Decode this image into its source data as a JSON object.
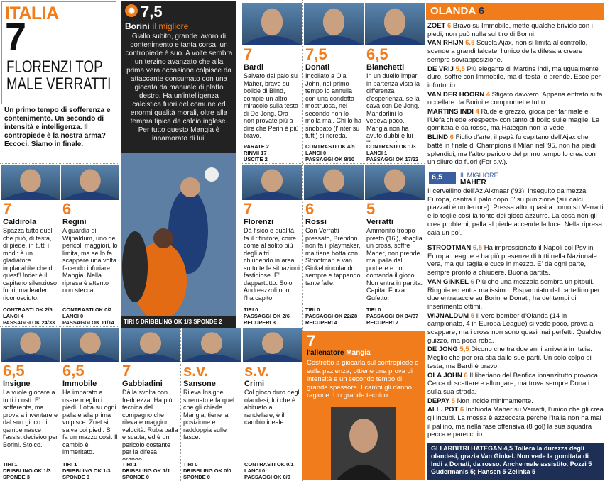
{
  "header": {
    "team": "ITALIA",
    "vote": "7",
    "headline_1": "FLORENZI TOP",
    "headline_2": "MALE VERRATTI",
    "intro": "Un primo tempo di sofferenza e contenimento. Un secondo di intensità e intelligenza. Il contropiede è la nostra arma? Eccoci. Siamo in finale."
  },
  "best": {
    "vote": "7,5",
    "name": "Borini",
    "tag": "il migliore",
    "text": "Giallo subito, grande lavoro di contenimento e tanta corsa, un contropiede è suo. A volte sembra un terzino avanzato che alla prima vera occasione colpisce da attaccante consumato con una giocata da manuale di platto destro. Ha un'intelligenza calcistica fuori del comune ed enormi qualità morali, oltre alla tempra tipica da calcio inglese. Per tutto questo Mangia è innamorato di lui.",
    "stats": "TIRI 5   DRIBBLING OK 1/3   SPONDE 2"
  },
  "players": [
    {
      "vote": "7",
      "name": "Bardi",
      "text": "Salvato dal palo su Maher, bravo sul bolide di Blind, compie un altro miracolo sulla testa di De Jong. Ora non provate più a dire che Perin è più bravo.",
      "stats": [
        "PARATE 2",
        "RINVII 17",
        "USCITE 2"
      ]
    },
    {
      "vote": "7,5",
      "name": "Donati",
      "text": "Incollato a Ola John, nel primo tempo lo annulla con una condotta mostruosa, nel secondo non lo molla mai. Chi lo ha snobbato (l'Inter su tutti) si ricreda.",
      "stats": [
        "CONTRASTI OK 4/5",
        "LANCI 0",
        "PASSAGGI OK 8/10"
      ]
    },
    {
      "vote": "6,5",
      "name": "Bianchetti",
      "text": "In un duello impari in partenza vista la differenza d'esperienza, se la cava con De Jong. Mandorlini lo vedeva poco. Mangia non ha avuto dubbi e lui l'ha ripagato.",
      "stats": [
        "CONTRASTI OK 1/3",
        "LANCI 1",
        "PASSAGGI OK 17/22"
      ]
    },
    {
      "vote": "7",
      "name": "Caldirola",
      "text": "Spazza tutto quel che può, di testa, di piede, in tutti i modi: è un gladiatore implacabile che di quest'Under è il capitano silenzioso fuori, ma leader riconosciuto.",
      "stats": [
        "CONTRASTI OK 2/5",
        "LANCI 4",
        "PASSAGGI OK 24/33"
      ]
    },
    {
      "vote": "6",
      "name": "Regini",
      "text": "A guardia di Wijnaldum, uno dei pericoli maggiori, lo limita, ma se lo fa scappare una volta facendo infuriare Mangia. Nella ripresa è attento non stecca.",
      "stats": [
        "CONTRASTI OK 0/2",
        "LANCI 0",
        "PASSAGGI OK 11/14"
      ]
    },
    {
      "vote": "7",
      "name": "Florenzi",
      "text": "Dà fisico e qualità, fa il rifinitore, corre come al solito più degli altri chiudendo in area su tutte le situazioni fastidiose. E' dappertutto. Solo Andreazzoli non l'ha capito.",
      "stats": [
        "TIRI 0",
        "PASSAGGI OK 2/6",
        "RECUPERI 3"
      ]
    },
    {
      "vote": "6",
      "name": "Rossi",
      "text": "Con Verratti pressato, Brendon non fa il playmaker, ma tiene botta con Strootman e van Ginkel rinculando sempre e tappando tante falle.",
      "stats": [
        "TIRI 0",
        "PASSAGGI OK 22/28",
        "RECUPERI 4"
      ]
    },
    {
      "vote": "5",
      "name": "Verratti",
      "text": "Ammonito troppo presto (16'), sbaglia un cross, soffre Maher, non prende mai palla dal portiere e non comanda il gioco. Non entra in partita. Capita. Forza Gufetto.",
      "stats": [
        "TIRI 0",
        "PASSAGGI OK 34/37",
        "RECUPERI 7"
      ]
    },
    {
      "vote": "6,5",
      "name": "Insigne",
      "text": "La vuole giocare a tutti i costi. E' sofferente, ma prova a inventare e dal suo gioco di gambe nasce l'assist decisivo per Borini. Stoico.",
      "stats": [
        "TIRI 1",
        "DRIBBLING OK 1/3",
        "SPONDE 3"
      ]
    },
    {
      "vote": "6,5",
      "name": "Immobile",
      "text": "Ha imparato a usare meglio i piedi. Lotta su ogni palla e alla prima volpisce: Zoet si salva coi piedi. Si fa un mazzo così. Il cambio è immeritato.",
      "stats": [
        "TIRI 1",
        "DRIBBLING OK 1/3",
        "SPONDE 0"
      ]
    },
    {
      "vote": "7",
      "name": "Gabbiadini",
      "text": "Dà la svolta con freddezza. Ha più tecnica del compagno che rileva e maggior velocità. Ruba palla e scatta, ed è un pericolo costante per la difesa orange.",
      "stats": [
        "TIRI 1",
        "DRIBBLING OK 1/1",
        "SPONDE 0"
      ]
    },
    {
      "vote": "s.v.",
      "name": "Sansone",
      "text": "Rileva Insigne stremato e fa quel che gli chiede Mangia, tiene la posizione e raddoppia sulle fasce.",
      "stats": [
        "TIRI 0",
        "DRIBBLING OK 0/0",
        "SPONDE 0"
      ]
    },
    {
      "vote": "s.v.",
      "name": "Crimi",
      "text": "Col gioco duro degli olandesi, lui che è abituato a randellare, è il cambio ideale.",
      "stats": [
        "CONTRASTI OK 0/1",
        "LANCI 0",
        "PASSAGGI OK 0/0"
      ]
    }
  ],
  "coach": {
    "vote": "7",
    "role": "l'allenatore",
    "name": "Mangia",
    "text": "Costretto a giocarla sul contropiede e sulla pazienza, ottiene una prova di intensità e un secondo tempo di grande spessore. I cambi gli danno ragione. Un grande tecnico."
  },
  "olanda": {
    "team": "OLANDA",
    "vote": "6",
    "ratings": [
      {
        "name": "ZOET",
        "vote": "6",
        "text": "Bravo su Immobile, mette qualche brivido con i piedi, non può nulla sul tiro di Borini."
      },
      {
        "name": "VAN RHIJN",
        "vote": "6,5",
        "text": "Scuola Ajax, non si limita al controllo, scende a grandi falcate, l'unico della difesa a creare sempre sovrapposizione."
      },
      {
        "name": "DE VRIJ",
        "vote": "5,5",
        "text": "Più elegante di Martins Indi, ma ugualmente duro, soffre con Immobile, ma di testa le prende. Esce per infortunio."
      },
      {
        "name": "VAN DER HOORN",
        "vote": "4",
        "text": "Sfigato davvero. Appena entrato si fa uccellare da Borini e compromette tutto."
      },
      {
        "name": "MARTINS INDI",
        "vote": "4",
        "text": "Rude e grezzo, gioca per far male e l'Uefa chiede «respect» con tanto di bollo sulle maglie. La gomitata è da rosso, ma Hategan non la vede."
      },
      {
        "name": "BLIND",
        "vote": "6",
        "text": "Figlio d'arte, il papà fu capitano dell'Ajax che battè in finale di Champions il Milan nel '95, non ha piedi splendidi, ma l'altro pericolo del primo tempo lo crea con un siluro da fuori (Fer s.v.)."
      }
    ],
    "best_label": "IL MIGLIORE",
    "best_vote": "6,5",
    "best_name": "MAHER",
    "best_text": "Il cervellino dell'Az Alkmaar ('93), inseguito da mezza Europa, centra il palo dopo 5' su punizione (sui calci piazzati è un terrore). Pressa alto, quasi a uomo su Verratti e lo toglie così la fonte del gioco azzurro. La cosa non gli crea problemi, palla al piede accende la luce. Nella ripresa cala un po'.",
    "ratings2": [
      {
        "name": "STROOTMAN",
        "vote": "6,5",
        "text": "Ha impressionato il Napoli col Psv in Europa League e ha più presenze di tutti nella Nazionale vera, ma qui taglia e cuce in mezzo. E' da ogni parte, sempre pronto a chiudere. Buona partita."
      },
      {
        "name": "VAN GINKEL",
        "vote": "6",
        "text": "Più che una mezzala sembra un pitbull. Ringhia ed entra malissimo. Risparmiato dal cartellino per due entrataccie su Borini e Donati, ha dei tempi di inserimento ottimi."
      },
      {
        "name": "WIJNALDUM",
        "vote": "5",
        "text": "Il vero bomber d'Olanda (14 in campionato, 4 in Europa League) si vede poco, prova a scappare, ma i cross non sono quasi mai perfetti. Qualche guizzo, ma poca roba."
      },
      {
        "name": "DE JONG",
        "vote": "5,5",
        "text": "Dicono che tra due anni arriverà in Italia. Meglio che per ora stia dalle sue parti. Un solo colpo di testa, ma Bardi è bravo."
      },
      {
        "name": "OLA JOHN",
        "vote": "6",
        "text": "Il liberiano del Benfica innanzitutto provoca. Cerca di scattare e allungare, ma trova sempre Donati sulla sua strada."
      },
      {
        "name": "DEPAY",
        "vote": "5",
        "text": "Non incide minimamente."
      },
      {
        "name": "ALL. POT",
        "vote": "6",
        "text": "Inchioda Maher su Verratti, l'unico che gli crea gli incubi. La mossa è azzeccata perchè l'Italia non ha mai il pallino, ma nella fase offensiva (8 gol) la sua squadra pecca e parecchio."
      }
    ],
    "referee": "GLI ARBITRI HATEGAN 4,5 Tollera la durezza degli olandesi, grazia Van Ginkel. Non vede la gomitata di Indi a Donati, da rosso. Anche male assistito. Pozzi 5 Gudermanis 5; Hansen 5-Zelinka 5"
  },
  "colors": {
    "accent": "#f07c1c",
    "navy": "#1e2f55",
    "blue": "#3a5ea0"
  }
}
